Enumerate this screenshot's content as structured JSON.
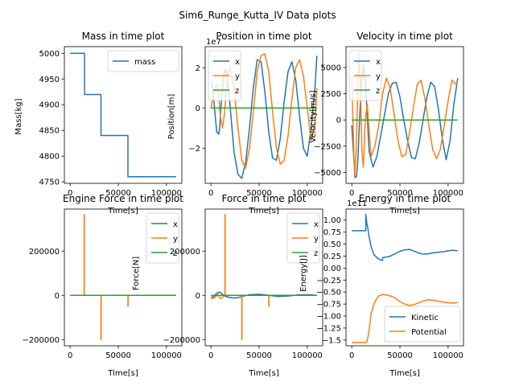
{
  "figure": {
    "title": "Sim6_Runge_Kutta_IV Data plots"
  },
  "colors": {
    "blue": "#1f77b4",
    "orange": "#ff7f0e",
    "green": "#2ca02c"
  },
  "chart_data": [
    {
      "type": "line",
      "title": "Mass in time plot",
      "xlabel": "Time[s]",
      "ylabel": "Mass[kg]",
      "xlim": [
        -6000,
        116000
      ],
      "ylim": [
        4747,
        5013
      ],
      "xticks": [
        0,
        50000,
        100000
      ],
      "xtick_labels": [
        "0",
        "50000",
        "100000"
      ],
      "yticks": [
        4750,
        4800,
        4850,
        4900,
        4950,
        5000
      ],
      "ytick_labels": [
        "4750",
        "4800",
        "4850",
        "4900",
        "4950",
        "5000"
      ],
      "offset_text": "",
      "legend": "upper right",
      "series": [
        {
          "name": "mass",
          "color": "#1f77b4",
          "x": [
            0,
            15000,
            15000,
            32000,
            32000,
            60000,
            60000,
            110000
          ],
          "y": [
            5000,
            5000,
            4920,
            4920,
            4840,
            4840,
            4760,
            4760
          ]
        }
      ]
    },
    {
      "type": "line",
      "title": "Position in time plot",
      "xlabel": "Time[s]",
      "ylabel": "Position[m]",
      "xlim": [
        -6000,
        116000
      ],
      "ylim": [
        -3.75,
        3.05
      ],
      "xticks": [
        0,
        50000,
        100000
      ],
      "xtick_labels": [
        "0",
        "50000",
        "100000"
      ],
      "yticks": [
        -2,
        0,
        2
      ],
      "ytick_labels": [
        "−2",
        "0",
        "2"
      ],
      "offset_text": "1e7",
      "legend": "upper left",
      "series": [
        {
          "name": "x",
          "color": "#1f77b4",
          "x": [
            0,
            2000,
            4000,
            6000,
            8000,
            9000,
            11000,
            13000,
            15000,
            17000,
            20000,
            24000,
            28000,
            32000,
            36000,
            40000,
            44000,
            48000,
            52000,
            56000,
            60000,
            64000,
            68000,
            72000,
            76000,
            80000,
            84000,
            88000,
            92000,
            96000,
            100000,
            104000,
            108000,
            110000
          ],
          "y": [
            1.3,
            0.9,
            -0.2,
            -1.2,
            -1.3,
            -1.0,
            0.5,
            1.6,
            1.9,
            1.6,
            0.0,
            -2.2,
            -3.3,
            -3.5,
            -2.7,
            -1.0,
            1.0,
            2.4,
            2.3,
            0.8,
            -1.2,
            -2.5,
            -2.6,
            -1.5,
            0.3,
            1.8,
            2.3,
            1.4,
            -0.4,
            -2.0,
            -2.4,
            -1.0,
            1.0,
            2.6
          ]
        },
        {
          "name": "y",
          "color": "#ff7f0e",
          "x": [
            0,
            2000,
            4000,
            6000,
            8000,
            10000,
            12000,
            14000,
            16000,
            18000,
            20000,
            24000,
            28000,
            32000,
            36000,
            40000,
            44000,
            48000,
            52000,
            56000,
            60000,
            64000,
            68000,
            72000,
            76000,
            80000,
            84000,
            88000,
            92000,
            96000,
            100000,
            104000,
            108000,
            110000
          ],
          "y": [
            0.0,
            0.5,
            1.0,
            1.2,
            0.6,
            -0.5,
            -1.0,
            -0.3,
            0.9,
            1.8,
            2.0,
            1.0,
            -1.0,
            -2.6,
            -3.0,
            -2.0,
            -0.2,
            1.8,
            2.6,
            2.7,
            1.8,
            -0.2,
            -2.0,
            -2.8,
            -2.6,
            -1.4,
            0.4,
            2.0,
            2.4,
            1.6,
            0.0,
            -1.6,
            -0.8,
            1.0
          ]
        },
        {
          "name": "z",
          "color": "#2ca02c",
          "x": [
            0,
            110000
          ],
          "y": [
            0.0,
            0.0
          ]
        }
      ]
    },
    {
      "type": "line",
      "title": "Velocity in time plot",
      "xlabel": "Time[s]",
      "ylabel": "Velocity[m/s]",
      "xlim": [
        -6000,
        116000
      ],
      "ylim": [
        -6050,
        7000
      ],
      "xticks": [
        0,
        50000,
        100000
      ],
      "xtick_labels": [
        "0",
        "50000",
        "100000"
      ],
      "yticks": [
        -5000,
        -2500,
        0,
        2500,
        5000
      ],
      "ytick_labels": [
        "−5000",
        "−2500",
        "0",
        "2500",
        "5000"
      ],
      "offset_text": "",
      "legend": "upper left",
      "series": [
        {
          "name": "x",
          "color": "#1f77b4",
          "x": [
            0,
            2000,
            3500,
            5000,
            6500,
            8000,
            10000,
            12000,
            14000,
            16000,
            18000,
            22000,
            26000,
            30000,
            34000,
            38000,
            42000,
            46000,
            50000,
            54000,
            58000,
            62000,
            66000,
            70000,
            74000,
            78000,
            82000,
            86000,
            90000,
            94000,
            98000,
            102000,
            106000,
            110000
          ],
          "y": [
            -500,
            -3500,
            -5500,
            -5400,
            -3500,
            0,
            3500,
            5200,
            4000,
            500,
            -3000,
            -4500,
            -3500,
            -1500,
            500,
            2500,
            3500,
            3600,
            2200,
            0,
            -2000,
            -3600,
            -3700,
            -2200,
            0,
            2200,
            3600,
            3200,
            1000,
            -1800,
            -3800,
            -2000,
            1500,
            4000
          ]
        },
        {
          "name": "y",
          "color": "#ff7f0e",
          "x": [
            0,
            1500,
            3000,
            4500,
            6000,
            7500,
            9000,
            10500,
            12000,
            14000,
            16000,
            18000,
            20000,
            24000,
            28000,
            32000,
            36000,
            40000,
            44000,
            48000,
            52000,
            56000,
            60000,
            64000,
            68000,
            72000,
            76000,
            80000,
            84000,
            88000,
            92000,
            96000,
            100000,
            104000,
            108000,
            110000
          ],
          "y": [
            4000,
            -1000,
            -5500,
            -3000,
            2000,
            6500,
            3000,
            -3000,
            -4500,
            0,
            1500,
            -1000,
            -3500,
            -2500,
            -500,
            2500,
            4000,
            3000,
            500,
            -2000,
            -3500,
            -3300,
            -1200,
            1200,
            3400,
            3800,
            2000,
            -500,
            -2800,
            -3700,
            -2800,
            -500,
            1800,
            3800,
            3400,
            3600
          ]
        },
        {
          "name": "z",
          "color": "#2ca02c",
          "x": [
            0,
            110000
          ],
          "y": [
            0,
            0
          ]
        }
      ]
    },
    {
      "type": "line",
      "title": "Engine Force in time plot",
      "xlabel": "Time[s]",
      "ylabel": "",
      "xlim": [
        -6000,
        116000
      ],
      "ylim": [
        -228000,
        390000
      ],
      "xticks": [
        0,
        50000,
        100000
      ],
      "xtick_labels": [
        "0",
        "50000",
        "100000"
      ],
      "yticks": [
        -200000,
        0,
        200000
      ],
      "ytick_labels": [
        "−200000",
        "0",
        "200000"
      ],
      "offset_text": "",
      "legend": "upper right",
      "series": [
        {
          "name": "x",
          "color": "#1f77b4",
          "x": [
            0,
            110000
          ],
          "y": [
            0,
            0
          ]
        },
        {
          "name": "y",
          "color": "#ff7f0e",
          "x": [
            0,
            14500,
            14500,
            14700,
            14700,
            32000,
            32000,
            32200,
            32200,
            60000,
            60000,
            60200,
            60200,
            110000
          ],
          "y": [
            0,
            0,
            365000,
            365000,
            0,
            0,
            -200000,
            -200000,
            0,
            0,
            -50000,
            -50000,
            0,
            0
          ]
        },
        {
          "name": "z",
          "color": "#2ca02c",
          "x": [
            0,
            110000
          ],
          "y": [
            0,
            0
          ]
        }
      ]
    },
    {
      "type": "line",
      "title": "Force in time plot",
      "xlabel": "Time[s]",
      "ylabel": "Force[N]",
      "xlim": [
        -6000,
        116000
      ],
      "ylim": [
        -228000,
        390000
      ],
      "xticks": [
        0,
        50000,
        100000
      ],
      "xtick_labels": [
        "0",
        "50000",
        "100000"
      ],
      "yticks": [
        -200000,
        0,
        200000
      ],
      "ytick_labels": [
        "−200000",
        "0",
        "200000"
      ],
      "offset_text": "",
      "legend": "upper right",
      "series": [
        {
          "name": "x",
          "color": "#1f77b4",
          "x": [
            0,
            3000,
            6000,
            9000,
            12000,
            15000,
            20000,
            25000,
            30000,
            35000,
            40000,
            50000,
            60000,
            70000,
            80000,
            90000,
            100000,
            110000
          ],
          "y": [
            -10000,
            -5000,
            10000,
            15000,
            5000,
            -5000,
            -10000,
            -12000,
            -8000,
            -2000,
            3000,
            5000,
            0,
            -5000,
            -3000,
            2000,
            3000,
            0
          ]
        },
        {
          "name": "y",
          "color": "#ff7f0e",
          "x": [
            0,
            4000,
            7000,
            10000,
            14500,
            14500,
            14700,
            14700,
            20000,
            32000,
            32000,
            32200,
            32200,
            45000,
            60000,
            60000,
            60200,
            60200,
            80000,
            110000
          ],
          "y": [
            -15000,
            -10000,
            5000,
            -15000,
            0,
            365000,
            365000,
            0,
            0,
            0,
            -200000,
            -200000,
            0,
            0,
            0,
            -50000,
            -50000,
            0,
            0,
            0
          ]
        },
        {
          "name": "z",
          "color": "#2ca02c",
          "x": [
            0,
            110000
          ],
          "y": [
            0,
            0
          ]
        }
      ]
    },
    {
      "type": "line",
      "title": "Energy in time plot",
      "xlabel": "Time[s]",
      "ylabel": "Energy[J]",
      "xlim": [
        -6000,
        116000
      ],
      "ylim": [
        -1.62,
        1.23
      ],
      "xticks": [
        0,
        50000,
        100000
      ],
      "xtick_labels": [
        "0",
        "50000",
        "100000"
      ],
      "yticks": [
        -1.5,
        -1.25,
        -1.0,
        -0.75,
        -0.5,
        -0.25,
        0.0,
        0.25,
        0.5,
        0.75,
        1.0
      ],
      "ytick_labels": [
        "−1.5",
        "−1.25",
        "−1.00",
        "−0.75",
        "−0.50",
        "−0.25",
        "0.00",
        "0.25",
        "0.50",
        "0.75",
        "1.00"
      ],
      "offset_text": "1e11",
      "legend": "lower right",
      "series": [
        {
          "name": "Kinetic",
          "color": "#1f77b4",
          "x": [
            0,
            14500,
            14500,
            15500,
            16500,
            18000,
            20000,
            23000,
            27000,
            30000,
            31500,
            32000,
            32000,
            36000,
            40000,
            45000,
            50000,
            55000,
            60000,
            65000,
            70000,
            75000,
            80000,
            85000,
            90000,
            95000,
            100000,
            105000,
            110000
          ],
          "y": [
            0.78,
            0.78,
            1.12,
            0.95,
            0.85,
            0.65,
            0.45,
            0.28,
            0.2,
            0.17,
            0.16,
            0.16,
            0.22,
            0.23,
            0.25,
            0.3,
            0.35,
            0.38,
            0.39,
            0.35,
            0.31,
            0.29,
            0.3,
            0.32,
            0.33,
            0.34,
            0.36,
            0.37,
            0.36
          ]
        },
        {
          "name": "Potential",
          "color": "#ff7f0e",
          "x": [
            0,
            14500,
            16000,
            18000,
            20000,
            24000,
            28000,
            32000,
            36000,
            40000,
            45000,
            50000,
            55000,
            60000,
            65000,
            70000,
            75000,
            80000,
            85000,
            90000,
            95000,
            100000,
            105000,
            110000
          ],
          "y": [
            -1.55,
            -1.55,
            -1.52,
            -1.3,
            -0.95,
            -0.7,
            -0.58,
            -0.55,
            -0.56,
            -0.58,
            -0.62,
            -0.7,
            -0.75,
            -0.78,
            -0.76,
            -0.72,
            -0.68,
            -0.66,
            -0.67,
            -0.69,
            -0.71,
            -0.72,
            -0.73,
            -0.72
          ]
        }
      ]
    }
  ]
}
